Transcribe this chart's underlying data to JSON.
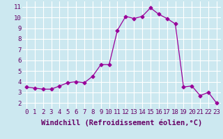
{
  "x": [
    0,
    1,
    2,
    3,
    4,
    5,
    6,
    7,
    8,
    9,
    10,
    11,
    12,
    13,
    14,
    15,
    16,
    17,
    18,
    19,
    20,
    21,
    22,
    23
  ],
  "y": [
    3.5,
    3.4,
    3.3,
    3.3,
    3.6,
    3.9,
    4.0,
    3.9,
    4.5,
    5.6,
    5.6,
    8.8,
    10.1,
    9.9,
    10.1,
    10.9,
    10.3,
    9.9,
    9.4,
    3.5,
    3.6,
    2.7,
    3.0,
    2.0
  ],
  "line_color": "#990099",
  "marker": "D",
  "marker_size": 2.5,
  "bg_color": "#cce8f0",
  "grid_color": "#ffffff",
  "xlabel": "Windchill (Refroidissement éolien,°C)",
  "xlabel_fontsize": 7.5,
  "tick_fontsize": 6.5,
  "ylim": [
    1.5,
    11.5
  ],
  "xlim": [
    -0.5,
    23.5
  ],
  "yticks": [
    2,
    3,
    4,
    5,
    6,
    7,
    8,
    9,
    10,
    11
  ],
  "xticks": [
    0,
    1,
    2,
    3,
    4,
    5,
    6,
    7,
    8,
    9,
    10,
    11,
    12,
    13,
    14,
    15,
    16,
    17,
    18,
    19,
    20,
    21,
    22,
    23
  ]
}
